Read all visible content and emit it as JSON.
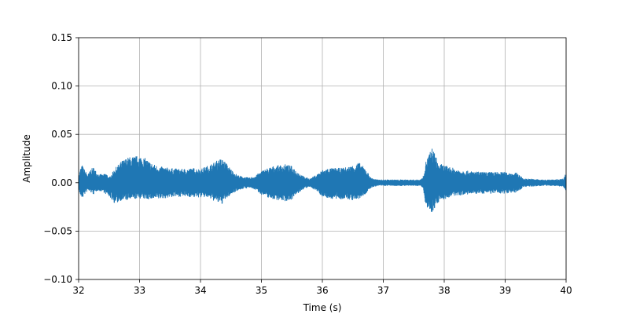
{
  "chart_data": {
    "type": "line",
    "xlabel": "Time (s)",
    "ylabel": "Amplitude",
    "xlim": [
      32,
      40
    ],
    "ylim": [
      -0.1,
      0.15
    ],
    "x_ticks": [
      32,
      33,
      34,
      35,
      36,
      37,
      38,
      39,
      40
    ],
    "x_tick_labels": [
      "32",
      "33",
      "34",
      "35",
      "36",
      "37",
      "38",
      "39",
      "40"
    ],
    "y_ticks": [
      -0.1,
      -0.05,
      0.0,
      0.05,
      0.1,
      0.15
    ],
    "y_tick_labels": [
      "−0.10",
      "−0.05",
      "0.00",
      "0.05",
      "0.10",
      "0.15"
    ],
    "grid": true,
    "series_color": "#1f77b4",
    "envelope": {
      "t": [
        32.0,
        32.03,
        32.06,
        32.1,
        32.15,
        32.2,
        32.25,
        32.3,
        32.4,
        32.45,
        32.5,
        32.55,
        32.6,
        32.7,
        32.8,
        32.9,
        33.0,
        33.1,
        33.2,
        33.3,
        33.5,
        33.7,
        33.9,
        34.0,
        34.1,
        34.2,
        34.3,
        34.35,
        34.4,
        34.5,
        34.6,
        34.7,
        34.8,
        34.9,
        35.0,
        35.1,
        35.2,
        35.3,
        35.4,
        35.5,
        35.6,
        35.7,
        35.8,
        35.9,
        36.0,
        36.1,
        36.2,
        36.3,
        36.4,
        36.5,
        36.6,
        36.7,
        36.8,
        36.9,
        37.0,
        37.2,
        37.4,
        37.6,
        37.65,
        37.7,
        37.75,
        37.8,
        37.85,
        37.9,
        38.0,
        38.2,
        38.4,
        38.6,
        38.8,
        39.0,
        39.1,
        39.2,
        39.3,
        39.4,
        39.6,
        39.8,
        39.95,
        40.0
      ],
      "upper": [
        0.005,
        0.015,
        0.018,
        0.013,
        0.008,
        0.014,
        0.016,
        0.01,
        0.008,
        0.01,
        0.005,
        0.01,
        0.015,
        0.022,
        0.026,
        0.027,
        0.028,
        0.025,
        0.02,
        0.017,
        0.015,
        0.014,
        0.015,
        0.014,
        0.017,
        0.02,
        0.024,
        0.025,
        0.022,
        0.014,
        0.008,
        0.006,
        0.005,
        0.007,
        0.012,
        0.015,
        0.017,
        0.018,
        0.019,
        0.017,
        0.011,
        0.006,
        0.004,
        0.008,
        0.013,
        0.015,
        0.015,
        0.015,
        0.016,
        0.018,
        0.021,
        0.015,
        0.005,
        0.003,
        0.003,
        0.003,
        0.003,
        0.003,
        0.005,
        0.022,
        0.03,
        0.036,
        0.03,
        0.02,
        0.018,
        0.014,
        0.012,
        0.011,
        0.011,
        0.011,
        0.01,
        0.01,
        0.004,
        0.004,
        0.003,
        0.003,
        0.004,
        0.01
      ],
      "lower": [
        -0.006,
        -0.014,
        -0.016,
        -0.012,
        -0.008,
        -0.01,
        -0.012,
        -0.008,
        -0.009,
        -0.012,
        -0.014,
        -0.018,
        -0.022,
        -0.018,
        -0.018,
        -0.017,
        -0.016,
        -0.017,
        -0.017,
        -0.017,
        -0.015,
        -0.014,
        -0.015,
        -0.015,
        -0.015,
        -0.018,
        -0.021,
        -0.022,
        -0.018,
        -0.012,
        -0.008,
        -0.006,
        -0.005,
        -0.007,
        -0.012,
        -0.015,
        -0.017,
        -0.018,
        -0.019,
        -0.017,
        -0.011,
        -0.006,
        -0.004,
        -0.008,
        -0.014,
        -0.016,
        -0.017,
        -0.017,
        -0.017,
        -0.018,
        -0.017,
        -0.012,
        -0.005,
        -0.003,
        -0.003,
        -0.003,
        -0.003,
        -0.003,
        -0.005,
        -0.024,
        -0.03,
        -0.03,
        -0.026,
        -0.02,
        -0.017,
        -0.013,
        -0.012,
        -0.011,
        -0.011,
        -0.011,
        -0.01,
        -0.01,
        -0.004,
        -0.004,
        -0.003,
        -0.003,
        -0.004,
        -0.008
      ]
    }
  }
}
